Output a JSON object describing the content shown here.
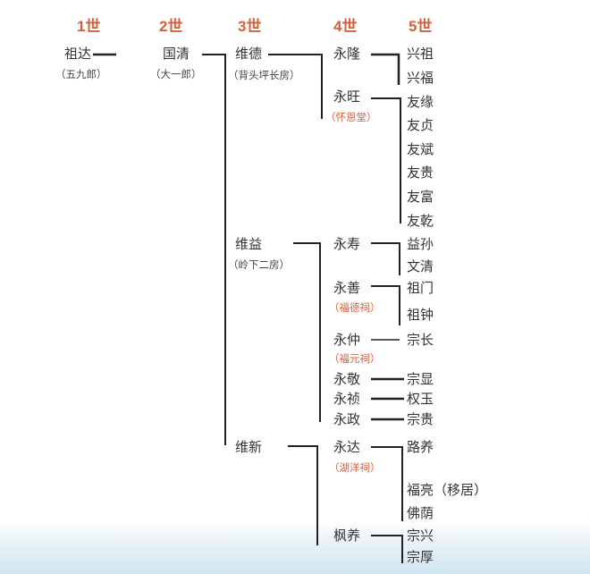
{
  "generations": [
    "1世",
    "2世",
    "3世",
    "4世",
    "5世"
  ],
  "accent_color": "#d4603c",
  "gen1": {
    "name": "祖达",
    "note": "（五九郎）"
  },
  "gen2": {
    "name": "国清",
    "note": "（大一郎）"
  },
  "gen3": [
    {
      "name": "维德",
      "note": "（背头坪长房）"
    },
    {
      "name": "维益",
      "note": "（岭下二房）"
    },
    {
      "name": "维新"
    }
  ],
  "gen4": [
    {
      "name": "永隆"
    },
    {
      "name": "永旺",
      "hall": "（怀恩堂）"
    },
    {
      "name": "永寿"
    },
    {
      "name": "永善",
      "hall": "（福德祠）"
    },
    {
      "name": "永仲",
      "hall": "（福元祠）"
    },
    {
      "name": "永敬"
    },
    {
      "name": "永祯"
    },
    {
      "name": "永政"
    },
    {
      "name": "永达",
      "hall": "（湖洋祠）"
    },
    {
      "name": "枫养"
    }
  ],
  "gen5": [
    "兴祖",
    "兴福",
    "友缘",
    "友贞",
    "友斌",
    "友贵",
    "友富",
    "友乾",
    "益孙",
    "文清",
    "祖门",
    "祖钟",
    "宗长",
    "宗显",
    "权玉",
    "宗贵",
    "路养",
    "福亮（移居）",
    "佛荫",
    "宗兴",
    "宗厚"
  ]
}
